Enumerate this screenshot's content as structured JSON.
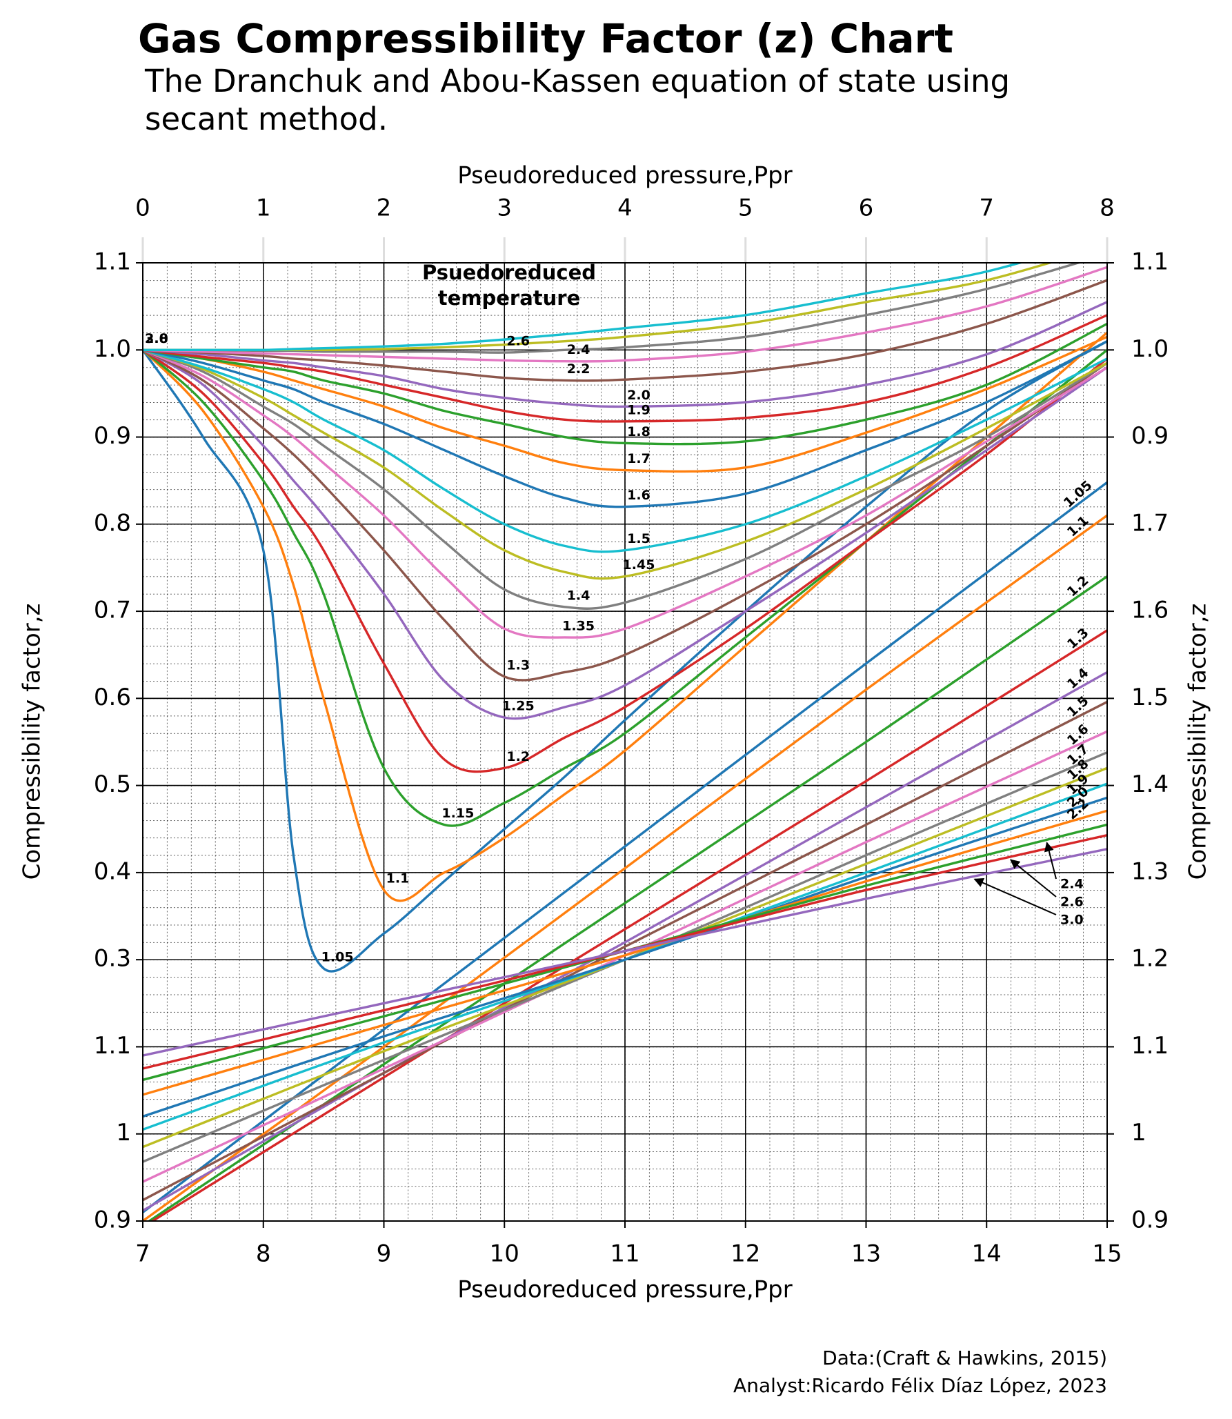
{
  "chart_data": [
    {
      "type": "line",
      "title": "Gas Compressibility Factor (z) Chart",
      "subtitle": [
        "The Dranchuk and Abou-Kassen equation of state using",
        "secant method."
      ],
      "xlabel": "Pseudoreduced pressure,Ppr",
      "ylabel": "Compressibility factor,z",
      "legend_title": [
        "Psuedoreduced",
        "temperature"
      ],
      "xlim": [
        0,
        8
      ],
      "xticks": [
        0,
        1,
        2,
        3,
        4,
        5,
        6,
        7,
        8
      ],
      "ylim": [
        0,
        1.1
      ],
      "yticks": [
        0.3,
        0.4,
        0.5,
        0.6,
        0.7,
        0.8,
        0.9,
        {
          "value": 1,
          "label": "1.0"
        },
        1.1
      ],
      "y2lim": [
        0,
        1.1
      ],
      "y2ticks": [
        0.9,
        {
          "value": 1,
          "label": "1.0"
        },
        1.1
      ],
      "grid": true,
      "x": [
        0,
        0.5,
        1,
        1.25,
        1.5,
        2,
        2.5,
        3,
        3.5,
        4,
        5,
        6,
        7,
        8
      ],
      "series": [
        {
          "name": "1.05",
          "color": "#1f77b4",
          "values": [
            1.0,
            0.9,
            0.77,
            0.42,
            0.29,
            0.33,
            0.39,
            0.45,
            0.51,
            0.575,
            0.7,
            0.82,
            0.93,
            1.01
          ]
        },
        {
          "name": "1.1",
          "color": "#ff7f0e",
          "values": [
            1.0,
            0.93,
            0.82,
            0.73,
            0.6,
            0.38,
            0.4,
            0.44,
            0.49,
            0.54,
            0.66,
            0.78,
            0.9,
            1.02
          ]
        },
        {
          "name": "1.15",
          "color": "#2ca02c",
          "values": [
            1.0,
            0.94,
            0.85,
            0.79,
            0.72,
            0.52,
            0.455,
            0.48,
            0.52,
            0.56,
            0.67,
            0.78,
            0.89,
            1.0
          ]
        },
        {
          "name": "1.2",
          "color": "#d62728",
          "values": [
            1.0,
            0.95,
            0.87,
            0.82,
            0.77,
            0.64,
            0.53,
            0.52,
            0.555,
            0.59,
            0.68,
            0.78,
            0.88,
            0.99
          ]
        },
        {
          "name": "1.25",
          "color": "#9467bd",
          "values": [
            1.0,
            0.96,
            0.89,
            0.85,
            0.81,
            0.72,
            0.62,
            0.578,
            0.59,
            0.615,
            0.7,
            0.79,
            0.885,
            0.98
          ]
        },
        {
          "name": "1.3",
          "color": "#8c564b",
          "values": [
            1.0,
            0.965,
            0.91,
            0.88,
            0.845,
            0.77,
            0.69,
            0.625,
            0.63,
            0.65,
            0.72,
            0.8,
            0.89,
            0.985
          ]
        },
        {
          "name": "1.35",
          "color": "#e377c2",
          "values": [
            1.0,
            0.97,
            0.925,
            0.9,
            0.87,
            0.81,
            0.74,
            0.68,
            0.67,
            0.68,
            0.74,
            0.81,
            0.895,
            0.98
          ]
        },
        {
          "name": "1.4",
          "color": "#7f7f7f",
          "values": [
            1.0,
            0.975,
            0.935,
            0.915,
            0.89,
            0.84,
            0.78,
            0.725,
            0.705,
            0.71,
            0.76,
            0.83,
            0.9,
            0.985
          ]
        },
        {
          "name": "1.45",
          "color": "#bcbd22",
          "values": [
            1.0,
            0.978,
            0.945,
            0.925,
            0.905,
            0.865,
            0.815,
            0.77,
            0.745,
            0.74,
            0.78,
            0.84,
            0.91,
            0.985
          ]
        },
        {
          "name": "1.5",
          "color": "#17becf",
          "values": [
            1.0,
            0.98,
            0.955,
            0.94,
            0.92,
            0.885,
            0.84,
            0.8,
            0.775,
            0.77,
            0.8,
            0.855,
            0.92,
            0.99
          ]
        },
        {
          "name": "1.6",
          "color": "#1f77b4",
          "values": [
            1.0,
            0.985,
            0.965,
            0.955,
            0.94,
            0.915,
            0.885,
            0.855,
            0.83,
            0.82,
            0.835,
            0.885,
            0.94,
            1.01
          ]
        },
        {
          "name": "1.7",
          "color": "#ff7f0e",
          "values": [
            1.0,
            0.99,
            0.975,
            0.965,
            0.955,
            0.935,
            0.91,
            0.89,
            0.87,
            0.862,
            0.865,
            0.905,
            0.955,
            1.015
          ]
        },
        {
          "name": "1.8",
          "color": "#2ca02c",
          "values": [
            1.0,
            0.99,
            0.98,
            0.975,
            0.965,
            0.95,
            0.93,
            0.915,
            0.9,
            0.893,
            0.895,
            0.92,
            0.96,
            1.03
          ]
        },
        {
          "name": "1.9",
          "color": "#d62728",
          "values": [
            1.0,
            0.992,
            0.985,
            0.98,
            0.975,
            0.96,
            0.945,
            0.93,
            0.92,
            0.918,
            0.922,
            0.94,
            0.98,
            1.04
          ]
        },
        {
          "name": "2.0",
          "color": "#9467bd",
          "values": [
            1.0,
            0.995,
            0.988,
            0.985,
            0.98,
            0.97,
            0.955,
            0.945,
            0.938,
            0.935,
            0.94,
            0.96,
            0.995,
            1.055
          ]
        },
        {
          "name": "2.2",
          "color": "#8c564b",
          "values": [
            1.0,
            0.997,
            0.993,
            0.99,
            0.988,
            0.982,
            0.975,
            0.968,
            0.965,
            0.966,
            0.975,
            0.995,
            1.03,
            1.08
          ]
        },
        {
          "name": "2.4",
          "color": "#e377c2",
          "values": [
            1.0,
            0.998,
            0.996,
            0.995,
            0.994,
            0.992,
            0.99,
            0.988,
            0.987,
            0.988,
            0.998,
            1.02,
            1.05,
            1.095
          ]
        },
        {
          "name": "2.6",
          "color": "#7f7f7f",
          "values": [
            1.0,
            1.0,
            0.999,
            0.999,
            0.998,
            0.998,
            0.998,
            0.997,
            1.0,
            1.003,
            1.015,
            1.04,
            1.07,
            1.11
          ]
        },
        {
          "name": "2.8",
          "color": "#bcbd22",
          "values": [
            1.0,
            1.0,
            1.0,
            1.0,
            1.0,
            1.001,
            1.003,
            1.006,
            1.01,
            1.015,
            1.03,
            1.055,
            1.08,
            1.12
          ]
        },
        {
          "name": "3.0",
          "color": "#17becf",
          "values": [
            1.0,
            1.0,
            1.0,
            1.001,
            1.002,
            1.004,
            1.007,
            1.012,
            1.018,
            1.025,
            1.04,
            1.065,
            1.09,
            1.13
          ]
        }
      ]
    },
    {
      "type": "line",
      "xlabel": "Pseudoreduced pressure,Ppr",
      "y2label": "Compressibility factor,z",
      "source": "Data:(Craft & Hawkins, 2015)",
      "credit": "Analyst:Ricardo Félix Díaz López, 2023",
      "xlim": [
        7,
        15
      ],
      "xticks": [
        7,
        8,
        9,
        10,
        11,
        12,
        13,
        14,
        15
      ],
      "ylim": [
        0.9,
        2.0
      ],
      "yticks": [
        0.9,
        1,
        1.1
      ],
      "y2lim": [
        0.9,
        2.0
      ],
      "y2ticks": [
        0.9,
        1,
        1.1,
        1.2,
        1.3,
        1.4,
        1.5,
        1.6,
        1.7
      ],
      "grid": true,
      "x": [
        7,
        9,
        11,
        13,
        15
      ],
      "series": [
        {
          "name": "1.05",
          "color": "#1f77b4",
          "values": [
            0.91,
            1.12,
            1.33,
            1.54,
            1.748
          ]
        },
        {
          "name": "1.1",
          "color": "#ff7f0e",
          "values": [
            0.9,
            1.1,
            1.305,
            1.51,
            1.71
          ]
        },
        {
          "name": "1.2",
          "color": "#2ca02c",
          "values": [
            0.895,
            1.08,
            1.265,
            1.45,
            1.64
          ]
        },
        {
          "name": "1.3",
          "color": "#d62728",
          "values": [
            0.893,
            1.065,
            1.235,
            1.405,
            1.578
          ]
        },
        {
          "name": "1.4",
          "color": "#9467bd",
          "values": [
            0.912,
            1.07,
            1.22,
            1.375,
            1.53
          ]
        },
        {
          "name": "1.5",
          "color": "#8c564b",
          "values": [
            0.924,
            1.07,
            1.215,
            1.355,
            1.496
          ]
        },
        {
          "name": "1.6",
          "color": "#e377c2",
          "values": [
            0.945,
            1.075,
            1.205,
            1.335,
            1.462
          ]
        },
        {
          "name": "1.7",
          "color": "#7f7f7f",
          "values": [
            0.968,
            1.085,
            1.2,
            1.32,
            1.438
          ]
        },
        {
          "name": "1.8",
          "color": "#bcbd22",
          "values": [
            0.985,
            1.095,
            1.2,
            1.31,
            1.42
          ]
        },
        {
          "name": "1.9",
          "color": "#17becf",
          "values": [
            1.005,
            1.105,
            1.2,
            1.3,
            1.402
          ]
        },
        {
          "name": "2.0",
          "color": "#1f77b4",
          "values": [
            1.02,
            1.112,
            1.2,
            1.295,
            1.386
          ]
        },
        {
          "name": "2.2",
          "color": "#ff7f0e",
          "values": [
            1.045,
            1.125,
            1.205,
            1.29,
            1.371
          ]
        },
        {
          "name": "2.4",
          "color": "#2ca02c",
          "values": [
            1.062,
            1.135,
            1.21,
            1.285,
            1.355
          ]
        },
        {
          "name": "2.6",
          "color": "#d62728",
          "values": [
            1.075,
            1.142,
            1.21,
            1.28,
            1.343
          ]
        },
        {
          "name": "3.0",
          "color": "#9467bd",
          "values": [
            1.09,
            1.15,
            1.21,
            1.27,
            1.327
          ]
        }
      ]
    }
  ]
}
